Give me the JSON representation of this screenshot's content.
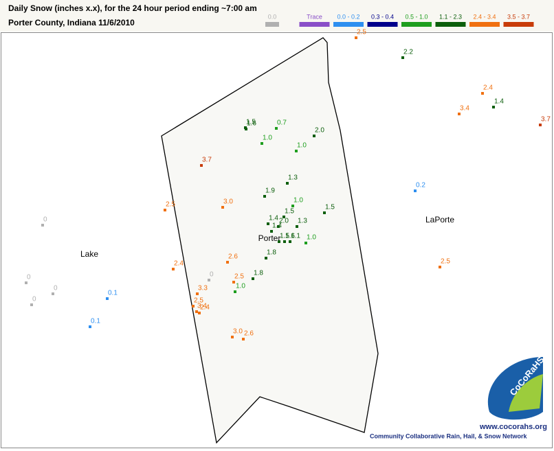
{
  "header": {
    "title": "Daily Snow (inches  x.x),  for the 24 hour period ending ~7:00 am",
    "subtitle": "Porter County, Indiana  11/6/2010"
  },
  "legend": [
    {
      "label": "0.0",
      "color": "#b0b0b0"
    },
    {
      "label": "Trace",
      "color": "#8a4fc8"
    },
    {
      "label": "0.0 - 0.2",
      "color": "#2e8ff0"
    },
    {
      "label": "0.3 - 0.4",
      "color": "#00008b"
    },
    {
      "label": "0.5 - 1.0",
      "color": "#1e9e1e"
    },
    {
      "label": "1.1 - 2.3",
      "color": "#0b5e0b"
    },
    {
      "label": "2.4 - 3.4",
      "color": "#f07010"
    },
    {
      "label": "3.5 - 3.7",
      "color": "#c83c0a"
    }
  ],
  "counties": [
    "Lake",
    "Porter",
    "LaPorte"
  ],
  "stations": [
    {
      "label": "2.5",
      "color": "#f07010"
    },
    {
      "label": "2.2",
      "color": "#0b5e0b"
    },
    {
      "label": "2.4",
      "color": "#f07010"
    },
    {
      "label": "3.4",
      "color": "#f07010"
    },
    {
      "label": "1.4",
      "color": "#0b5e0b"
    },
    {
      "label": "3.7",
      "color": "#c83c0a"
    },
    {
      "label": "1.6",
      "color": "#0b5e0b"
    },
    {
      "label": "1.5",
      "color": "#0b5e0b"
    },
    {
      "label": "0.7",
      "color": "#1e9e1e"
    },
    {
      "label": "2.0",
      "color": "#0b5e0b"
    },
    {
      "label": "1.0",
      "color": "#1e9e1e"
    },
    {
      "label": "1.0",
      "color": "#1e9e1e"
    },
    {
      "label": "3.7",
      "color": "#c83c0a"
    },
    {
      "label": "1.3",
      "color": "#0b5e0b"
    },
    {
      "label": "1.9",
      "color": "#0b5e0b"
    },
    {
      "label": "3.0",
      "color": "#f07010"
    },
    {
      "label": "2.5",
      "color": "#f07010"
    },
    {
      "label": "1.0",
      "color": "#1e9e1e"
    },
    {
      "label": "1.5",
      "color": "#0b5e0b"
    },
    {
      "label": "1.5",
      "color": "#0b5e0b"
    },
    {
      "label": "1.4",
      "color": "#0b5e0b"
    },
    {
      "label": "1.3",
      "color": "#0b5e0b"
    },
    {
      "label": "2.0",
      "color": "#0b5e0b"
    },
    {
      "label": "1.4",
      "color": "#0b5e0b"
    },
    {
      "label": "1.5",
      "color": "#0b5e0b"
    },
    {
      "label": "1.6",
      "color": "#0b5e0b"
    },
    {
      "label": "1.1",
      "color": "#0b5e0b"
    },
    {
      "label": "1.0",
      "color": "#1e9e1e"
    },
    {
      "label": "0",
      "color": "#b0b0b0"
    },
    {
      "label": "0.2",
      "color": "#2e8ff0"
    },
    {
      "label": "1.8",
      "color": "#0b5e0b"
    },
    {
      "label": "2.6",
      "color": "#f07010"
    },
    {
      "label": "2.4",
      "color": "#f07010"
    },
    {
      "label": "2.5",
      "color": "#f07010"
    },
    {
      "label": "1.8",
      "color": "#0b5e0b"
    },
    {
      "label": "2.5",
      "color": "#f07010"
    },
    {
      "label": "0",
      "color": "#b0b0b0"
    },
    {
      "label": "0",
      "color": "#b0b0b0"
    },
    {
      "label": "0",
      "color": "#b0b0b0"
    },
    {
      "label": "1.0",
      "color": "#1e9e1e"
    },
    {
      "label": "3.3",
      "color": "#f07010"
    },
    {
      "label": "0.1",
      "color": "#2e8ff0"
    },
    {
      "label": "0",
      "color": "#b0b0b0"
    },
    {
      "label": "2.5",
      "color": "#f07010"
    },
    {
      "label": "3.4",
      "color": "#f07010"
    },
    {
      "label": "2.4",
      "color": "#f07010"
    },
    {
      "label": "0.1",
      "color": "#2e8ff0"
    },
    {
      "label": "3.0",
      "color": "#f07010"
    },
    {
      "label": "2.6",
      "color": "#f07010"
    }
  ],
  "footer": {
    "logo": "CoCoRaHS",
    "url": "www.cocorahs.org",
    "network": "Community Collaborative Rain, Hail, & Snow Network"
  }
}
